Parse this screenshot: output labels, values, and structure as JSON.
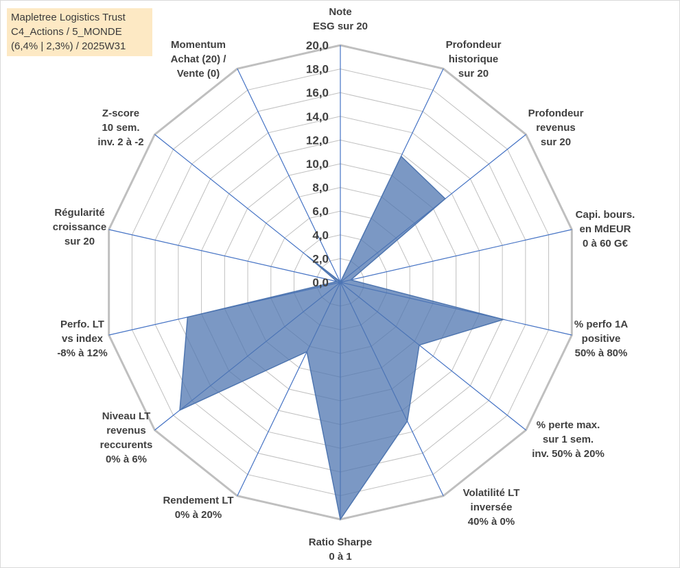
{
  "title_lines": [
    "Mapletree Logistics Trust",
    "C4_Actions / 5_MONDE",
    "(6,4% | 2,3%) / 2025W31"
  ],
  "colors": {
    "grid": "#bfbfbf",
    "spoke": "#4472c4",
    "fill": "#4f76b0",
    "fill_opacity": 0.75,
    "title_bg": "#fde9c4"
  },
  "chart_data": {
    "type": "radar",
    "r_range": [
      0,
      20
    ],
    "r_tick_labels": [
      "0,0",
      "2,0",
      "4,0",
      "6,0",
      "8,0",
      "10,0",
      "12,0",
      "14,0",
      "16,0",
      "18,0",
      "20,0"
    ],
    "grid": true,
    "categories": [
      [
        "Note",
        "ESG sur 20"
      ],
      [
        "Profondeur",
        "historique",
        "sur 20"
      ],
      [
        "Profondeur",
        "revenus",
        "sur 20"
      ],
      [
        "Capi. bours.",
        "en MdEUR",
        "0 à 60 G€"
      ],
      [
        "% perfo 1A",
        "positive",
        "50% à 80%"
      ],
      [
        "% perte max.",
        "sur 1 sem.",
        "inv. 50% à 20%"
      ],
      [
        "Volatilité LT",
        "inversée",
        "40% à 0%"
      ],
      [
        "Ratio Sharpe",
        "0 à 1"
      ],
      [
        "Rendement LT",
        "0% à 20%"
      ],
      [
        "Niveau LT",
        "revenus",
        "reccurents",
        "0% à 6%"
      ],
      [
        "Perfo. LT",
        "vs index",
        "-8% à 12%"
      ],
      [
        "Régularité",
        "croissance",
        "sur 20"
      ],
      [
        "Z-score",
        "10 sem.",
        "inv. 2 à -2"
      ],
      [
        "Momentum",
        "Achat (20) /",
        "Vente (0)"
      ]
    ],
    "series": [
      {
        "values": [
          0,
          11.8,
          11.3,
          0.9,
          14.1,
          8.5,
          13.0,
          20.0,
          6.5,
          17.3,
          13.2,
          0.3,
          3.6,
          0.1
        ]
      }
    ]
  }
}
